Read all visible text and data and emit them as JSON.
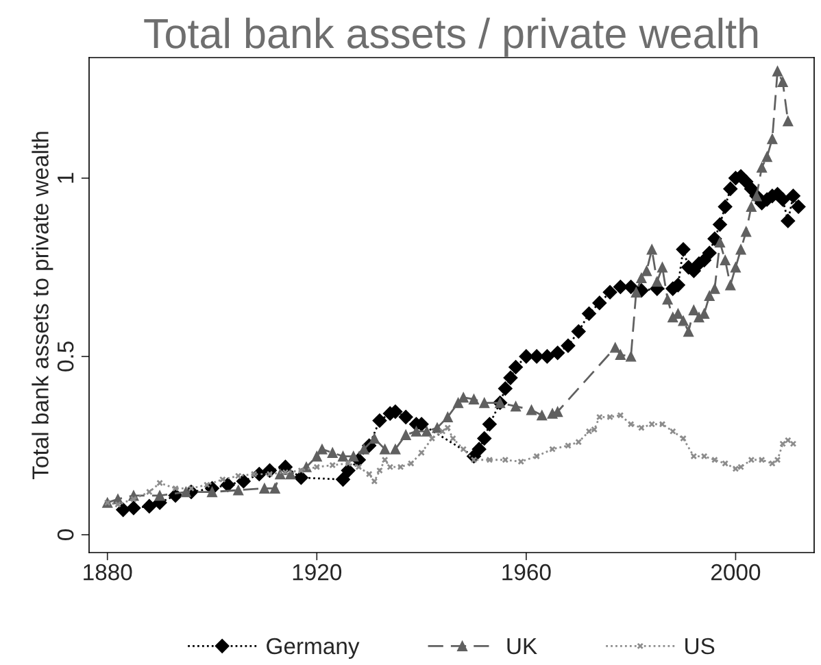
{
  "chart_data": {
    "type": "line",
    "title": "Total bank assets / private wealth",
    "ylabel": "Total bank assets to private wealth",
    "xlim": [
      1876.5,
      2015
    ],
    "xticks": [
      1880,
      1920,
      1960,
      2000
    ],
    "ylim": [
      -0.05,
      1.338
    ],
    "yticks": [
      0,
      0.5,
      1
    ],
    "grid": false,
    "legend": "bottom",
    "series": [
      {
        "name": "Germany",
        "color": "#000000",
        "marker": "diamond",
        "line_style": "dotted",
        "x": [
          1883,
          1885,
          1888,
          1890,
          1893,
          1896,
          1900,
          1903,
          1906,
          1909,
          1911,
          1914,
          1917,
          1925,
          1926,
          1928,
          1930,
          1932,
          1934,
          1935,
          1937,
          1939,
          1940,
          1950,
          1951,
          1952,
          1953,
          1955,
          1956,
          1957,
          1958,
          1960,
          1962,
          1964,
          1966,
          1968,
          1970,
          1972,
          1974,
          1976,
          1978,
          1980,
          1982,
          1985,
          1988,
          1989,
          1990,
          1991,
          1992,
          1993,
          1994,
          1995,
          1996,
          1997,
          1998,
          1999,
          2000,
          2001,
          2002,
          2003,
          2004,
          2005,
          2006,
          2007,
          2008,
          2009,
          2010,
          2011,
          2012
        ],
        "values": [
          0.07,
          0.075,
          0.08,
          0.09,
          0.11,
          0.12,
          0.13,
          0.14,
          0.15,
          0.17,
          0.18,
          0.19,
          0.16,
          0.155,
          0.18,
          0.21,
          0.25,
          0.32,
          0.34,
          0.345,
          0.33,
          0.31,
          0.31,
          0.22,
          0.24,
          0.27,
          0.31,
          0.37,
          0.41,
          0.44,
          0.47,
          0.5,
          0.5,
          0.5,
          0.51,
          0.53,
          0.57,
          0.62,
          0.65,
          0.68,
          0.695,
          0.695,
          0.685,
          0.69,
          0.69,
          0.7,
          0.8,
          0.75,
          0.74,
          0.76,
          0.77,
          0.79,
          0.83,
          0.87,
          0.92,
          0.97,
          1.0,
          1.005,
          0.99,
          0.97,
          0.95,
          0.93,
          0.94,
          0.95,
          0.955,
          0.94,
          0.88,
          0.95,
          0.92
        ]
      },
      {
        "name": "UK",
        "color": "#606060",
        "marker": "triangle",
        "line_style": "dashed",
        "x": [
          1880,
          1882,
          1885,
          1890,
          1895,
          1900,
          1905,
          1910,
          1912,
          1913,
          1915,
          1918,
          1920,
          1921,
          1923,
          1925,
          1927,
          1929,
          1931,
          1933,
          1935,
          1937,
          1939,
          1941,
          1943,
          1945,
          1947,
          1948,
          1950,
          1952,
          1955,
          1958,
          1961,
          1963,
          1965,
          1966,
          1977,
          1978,
          1980,
          1981,
          1982,
          1983,
          1984,
          1985,
          1986,
          1987,
          1988,
          1989,
          1990,
          1991,
          1992,
          1993,
          1994,
          1995,
          1996,
          1997,
          1998,
          1999,
          2000,
          2001,
          2002,
          2003,
          2004,
          2005,
          2006,
          2007,
          2008,
          2009,
          2010
        ],
        "values": [
          0.09,
          0.1,
          0.11,
          0.11,
          0.12,
          0.12,
          0.125,
          0.13,
          0.13,
          0.17,
          0.17,
          0.19,
          0.22,
          0.24,
          0.23,
          0.22,
          0.22,
          0.24,
          0.27,
          0.24,
          0.24,
          0.28,
          0.29,
          0.29,
          0.3,
          0.33,
          0.37,
          0.385,
          0.38,
          0.37,
          0.37,
          0.36,
          0.35,
          0.335,
          0.34,
          0.345,
          0.525,
          0.505,
          0.5,
          0.68,
          0.72,
          0.74,
          0.8,
          0.71,
          0.75,
          0.66,
          0.61,
          0.62,
          0.6,
          0.57,
          0.63,
          0.61,
          0.62,
          0.67,
          0.69,
          0.82,
          0.77,
          0.7,
          0.75,
          0.8,
          0.85,
          0.92,
          0.95,
          1.03,
          1.06,
          1.11,
          1.3,
          1.27,
          1.16
        ]
      },
      {
        "name": "US",
        "color": "#8c8c8c",
        "marker": "cross",
        "line_style": "dotted",
        "x": [
          1880,
          1882,
          1885,
          1888,
          1890,
          1893,
          1896,
          1899,
          1902,
          1905,
          1908,
          1911,
          1914,
          1917,
          1920,
          1923,
          1926,
          1928,
          1930,
          1931,
          1932,
          1933,
          1934,
          1936,
          1938,
          1940,
          1942,
          1944,
          1945,
          1946,
          1948,
          1950,
          1953,
          1956,
          1959,
          1962,
          1965,
          1968,
          1970,
          1972,
          1973,
          1974,
          1976,
          1978,
          1980,
          1982,
          1984,
          1986,
          1988,
          1990,
          1992,
          1994,
          1996,
          1998,
          2000,
          2001,
          2003,
          2005,
          2007,
          2008,
          2009,
          2010,
          2011
        ],
        "values": [
          0.09,
          0.085,
          0.1,
          0.12,
          0.145,
          0.13,
          0.13,
          0.14,
          0.155,
          0.165,
          0.17,
          0.17,
          0.175,
          0.18,
          0.19,
          0.195,
          0.2,
          0.19,
          0.17,
          0.15,
          0.18,
          0.21,
          0.19,
          0.19,
          0.2,
          0.23,
          0.27,
          0.29,
          0.3,
          0.27,
          0.24,
          0.21,
          0.21,
          0.21,
          0.205,
          0.22,
          0.24,
          0.25,
          0.26,
          0.29,
          0.295,
          0.33,
          0.33,
          0.335,
          0.31,
          0.3,
          0.31,
          0.31,
          0.29,
          0.27,
          0.22,
          0.22,
          0.21,
          0.2,
          0.185,
          0.19,
          0.21,
          0.21,
          0.2,
          0.21,
          0.255,
          0.265,
          0.255
        ]
      }
    ]
  }
}
